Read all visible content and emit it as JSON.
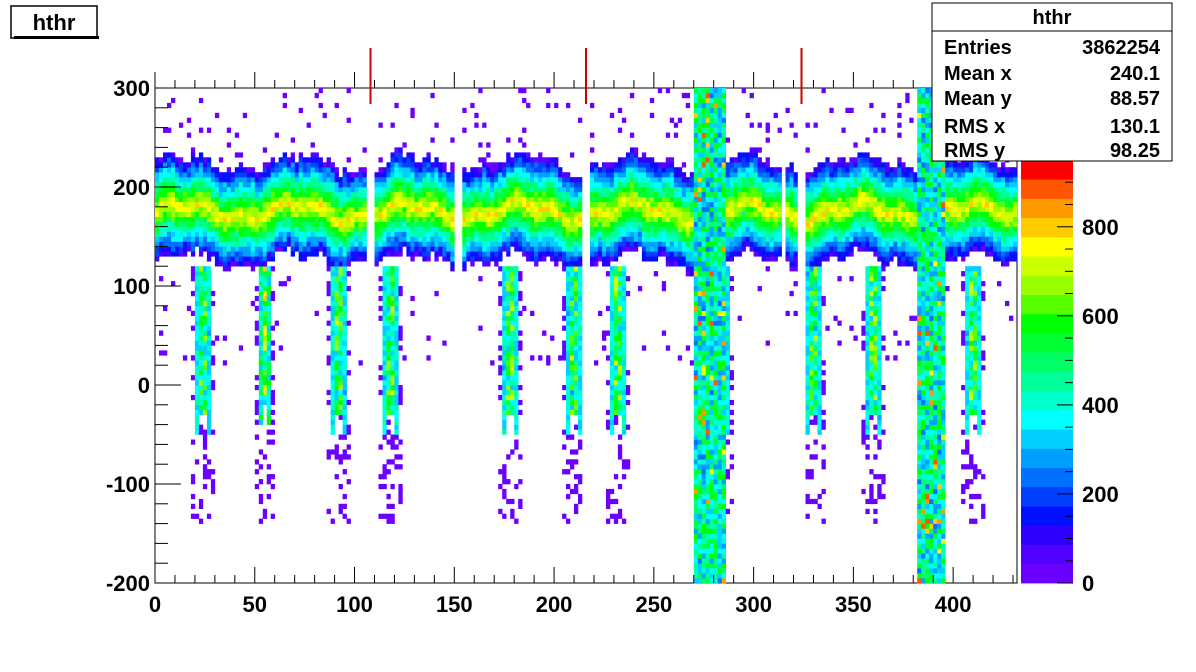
{
  "title": "hthr",
  "stats": {
    "name": "hthr",
    "rows": [
      {
        "label": "Entries",
        "value": "3862254"
      },
      {
        "label": "Mean x",
        "value": "240.1"
      },
      {
        "label": "Mean y",
        "value": "88.57"
      },
      {
        "label": "RMS x",
        "value": "130.1"
      },
      {
        "label": "RMS y",
        "value": "98.25"
      }
    ]
  },
  "chart_data": {
    "type": "heatmap",
    "title": "hthr",
    "xlabel": "",
    "ylabel": "",
    "xlim": [
      0,
      432
    ],
    "ylim": [
      -200,
      300
    ],
    "zlim": [
      0,
      950
    ],
    "x_ticks": [
      "0",
      "50",
      "100",
      "150",
      "200",
      "250",
      "300",
      "350",
      "400"
    ],
    "y_ticks": [
      "-200",
      "-100",
      "0",
      "100",
      "200",
      "300"
    ],
    "z_ticks": [
      "0",
      "200",
      "400",
      "600",
      "800"
    ],
    "band": {
      "center_y": 175,
      "low_y": 120,
      "high_y": 225
    },
    "drop_columns_x": [
      24,
      55,
      92,
      118,
      178,
      210,
      232,
      284,
      330,
      360,
      410
    ],
    "gap_columns_x": [
      108,
      152,
      216,
      315,
      324
    ],
    "dense_column_ranges_x": [
      [
        270,
        286
      ],
      [
        383,
        396
      ]
    ],
    "marker_lines_x": [
      108,
      216,
      324
    ],
    "colors": {
      "palette": [
        "#6a00ff",
        "#5200ff",
        "#2f00ff",
        "#0010ff",
        "#0040ff",
        "#0070ff",
        "#00a0ff",
        "#00cfff",
        "#00ffff",
        "#00ffcc",
        "#00ff99",
        "#00ff66",
        "#00ff33",
        "#00ff00",
        "#55ff00",
        "#99ff00",
        "#ccff00",
        "#ffff00",
        "#ffcc00",
        "#ff9900",
        "#ff5500",
        "#ff0000"
      ],
      "marker": "#d00000"
    }
  }
}
